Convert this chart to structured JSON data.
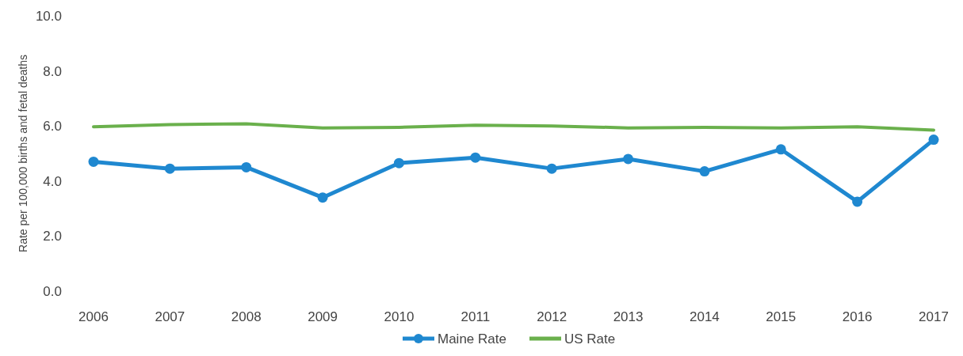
{
  "chart_data": {
    "type": "line",
    "ylabel": "Rate per 100,000 births and fetal deaths",
    "categories": [
      "2006",
      "2007",
      "2008",
      "2009",
      "2010",
      "2011",
      "2012",
      "2013",
      "2014",
      "2015",
      "2016",
      "2017"
    ],
    "series": [
      {
        "name": "Maine Rate",
        "color": "#1f88d0",
        "marker": "circle",
        "values": [
          4.7,
          4.45,
          4.5,
          3.4,
          4.65,
          4.85,
          4.45,
          4.8,
          4.35,
          5.15,
          3.25,
          5.5
        ]
      },
      {
        "name": "US Rate",
        "color": "#6ab04c",
        "marker": "none",
        "values": [
          5.97,
          6.05,
          6.08,
          5.93,
          5.95,
          6.03,
          6.0,
          5.93,
          5.95,
          5.93,
          5.97,
          5.85
        ]
      }
    ],
    "ylim": [
      0,
      10
    ],
    "yticks": [
      {
        "value": 0,
        "label": "0.0"
      },
      {
        "value": 2,
        "label": "2.0"
      },
      {
        "value": 4,
        "label": "4.0"
      },
      {
        "value": 6,
        "label": "6.0"
      },
      {
        "value": 8,
        "label": "8.0"
      },
      {
        "value": 10,
        "label": "10.0"
      }
    ],
    "grid": false,
    "legend": "bottom"
  }
}
